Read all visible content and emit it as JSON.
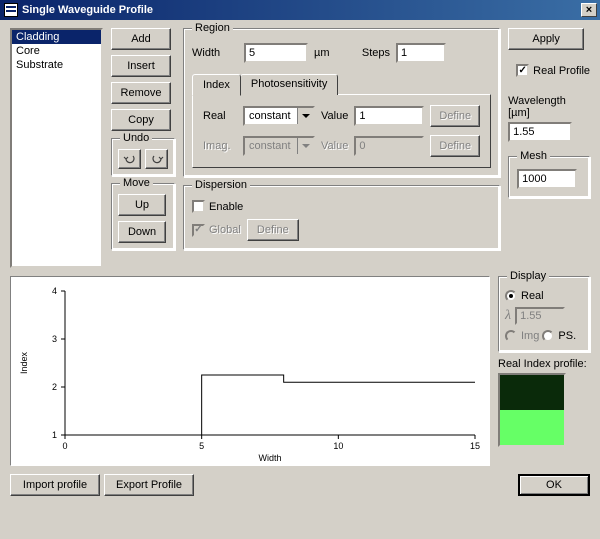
{
  "window": {
    "title": "Single Waveguide Profile",
    "close": "×"
  },
  "listbox": {
    "items": [
      "Cladding",
      "Core",
      "Substrate"
    ],
    "selected_index": 0
  },
  "buttons_col": {
    "add": "Add",
    "insert": "Insert",
    "remove": "Remove",
    "copy": "Copy",
    "undo_label": "Undo",
    "move_label": "Move",
    "up": "Up",
    "down": "Down"
  },
  "region": {
    "legend": "Region",
    "width_label": "Width",
    "width_value": "5",
    "width_unit": "µm",
    "steps_label": "Steps",
    "steps_value": "1",
    "tabs": {
      "index": "Index",
      "photo": "Photosensitivity",
      "active": "index"
    },
    "real_label": "Real",
    "real_mode": "constant",
    "real_value_label": "Value",
    "real_value": "1",
    "real_define": "Define",
    "imag_label": "Imag.",
    "imag_mode": "constant",
    "imag_value_label": "Value",
    "imag_value": "0",
    "imag_define": "Define"
  },
  "dispersion": {
    "legend": "Dispersion",
    "enable_label": "Enable",
    "enable_checked": false,
    "global_label": "Global",
    "global_checked": true,
    "define": "Define"
  },
  "right": {
    "apply": "Apply",
    "real_profile_label": "Real Profile",
    "real_profile_checked": true,
    "wavelength_label": "Wavelength [µm]",
    "wavelength_value": "1.55",
    "mesh_label": "Mesh",
    "mesh_value": "1000",
    "display_label": "Display",
    "display_options": {
      "real": "Real",
      "lambda_val": "1.55",
      "img": "Img",
      "ps": "PS."
    },
    "display_selected": "real",
    "real_index_profile_label": "Real Index profile:",
    "colorbar": {
      "top": "#0a2a0a",
      "bottom": "#66ff66"
    }
  },
  "footer": {
    "import": "Import profile",
    "export": "Export Profile",
    "ok": "OK"
  },
  "chart": {
    "type": "line",
    "xlabel": "Width",
    "ylabel": "Index",
    "xlim": [
      0,
      15
    ],
    "ylim": [
      1,
      4
    ],
    "xticks": [
      0,
      5,
      10,
      15
    ],
    "yticks": [
      1,
      2,
      3,
      4
    ],
    "series": {
      "x": [
        0,
        5,
        5,
        8,
        8,
        15
      ],
      "y": [
        1,
        1,
        2.25,
        2.25,
        2.1,
        2.1
      ],
      "color": "#000000",
      "line_width": 1
    },
    "axis_color": "#000000",
    "background_color": "#ffffff",
    "label_fontsize": 9
  }
}
